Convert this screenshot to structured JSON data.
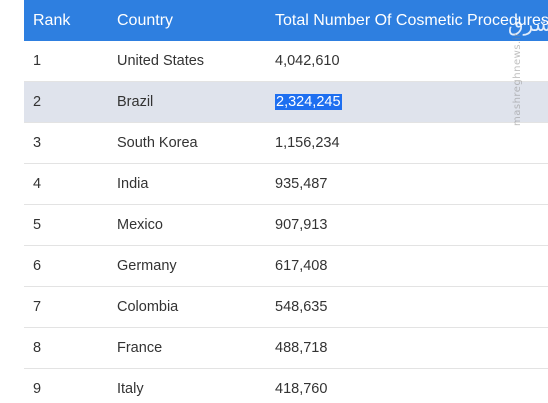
{
  "table": {
    "headers": {
      "rank": "Rank",
      "country": "Country",
      "total": "Total Number Of Cosmetic Procedures"
    },
    "selected_row_index": 1,
    "rows": [
      {
        "rank": "1",
        "country": "United States",
        "total": "4,042,610"
      },
      {
        "rank": "2",
        "country": "Brazil",
        "total": "2,324,245"
      },
      {
        "rank": "3",
        "country": "South Korea",
        "total": "1,156,234"
      },
      {
        "rank": "4",
        "country": "India",
        "total": "935,487"
      },
      {
        "rank": "5",
        "country": "Mexico",
        "total": "907,913"
      },
      {
        "rank": "6",
        "country": "Germany",
        "total": "617,408"
      },
      {
        "rank": "7",
        "country": "Colombia",
        "total": "548,635"
      },
      {
        "rank": "8",
        "country": "France",
        "total": "488,718"
      },
      {
        "rank": "9",
        "country": "Italy",
        "total": "418,760"
      }
    ]
  },
  "watermark": {
    "logo_text": "مشرق",
    "url_text": "mashreghnews.ir"
  },
  "colors": {
    "header_bg": "#2e7fe0",
    "selected_row_bg": "#dfe3ec",
    "text_highlight_bg": "#1e6ff0"
  }
}
